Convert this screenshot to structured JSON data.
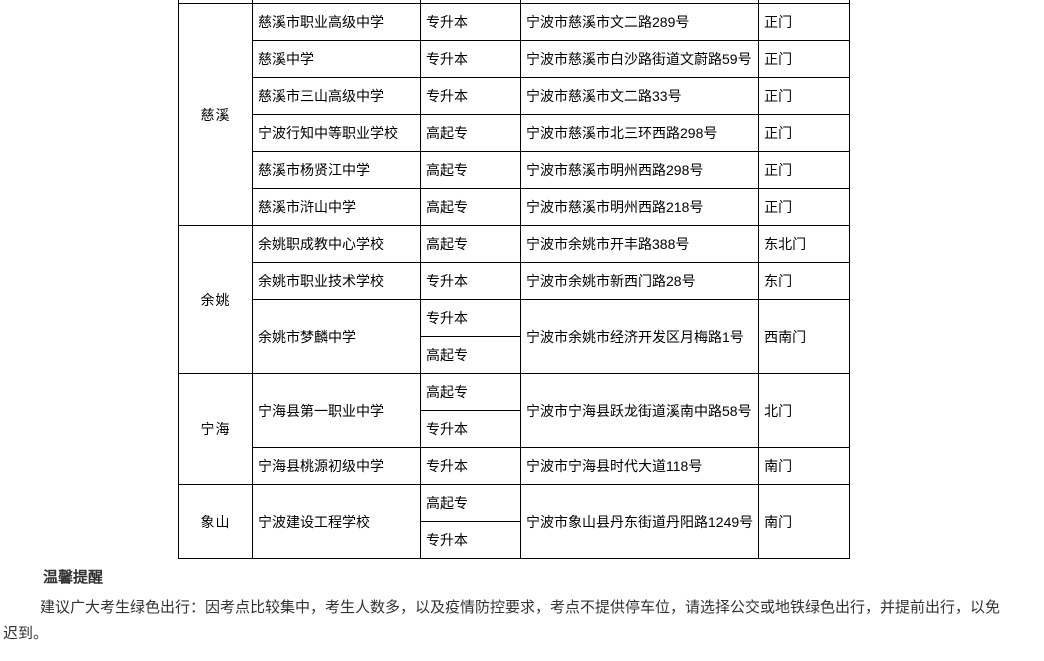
{
  "colors": {
    "background": "#ffffff",
    "table_border": "#000000",
    "table_text": "#000000",
    "notice_text": "#333333"
  },
  "table": {
    "groups": [
      {
        "district": "慈溪",
        "schools": [
          {
            "name": "慈溪市职业高级中学",
            "levels": [
              "专升本"
            ],
            "address": "宁波市慈溪市文二路289号",
            "gate": "正门"
          },
          {
            "name": "慈溪中学",
            "levels": [
              "专升本"
            ],
            "address": "宁波市慈溪市白沙路街道文蔚路59号",
            "gate": "正门"
          },
          {
            "name": "慈溪市三山高级中学",
            "levels": [
              "专升本"
            ],
            "address": "宁波市慈溪市文二路33号",
            "gate": "正门"
          },
          {
            "name": "宁波行知中等职业学校",
            "levels": [
              "高起专"
            ],
            "address": "宁波市慈溪市北三环西路298号",
            "gate": "正门"
          },
          {
            "name": "慈溪市杨贤江中学",
            "levels": [
              "高起专"
            ],
            "address": "宁波市慈溪市明州西路298号",
            "gate": "正门"
          },
          {
            "name": "慈溪市浒山中学",
            "levels": [
              "高起专"
            ],
            "address": "宁波市慈溪市明州西路218号",
            "gate": "正门"
          }
        ]
      },
      {
        "district": "余姚",
        "schools": [
          {
            "name": "余姚职成教中心学校",
            "levels": [
              "高起专"
            ],
            "address": "宁波市余姚市开丰路388号",
            "gate": "东北门"
          },
          {
            "name": "余姚市职业技术学校",
            "levels": [
              "专升本"
            ],
            "address": "宁波市余姚市新西门路28号",
            "gate": "东门"
          },
          {
            "name": "余姚市梦麟中学",
            "levels": [
              "专升本",
              "高起专"
            ],
            "address": "宁波市余姚市经济开发区月梅路1号",
            "gate": "西南门"
          }
        ]
      },
      {
        "district": "宁海",
        "schools": [
          {
            "name": "宁海县第一职业中学",
            "levels": [
              "高起专",
              "专升本"
            ],
            "address": "宁波市宁海县跃龙街道溪南中路58号",
            "gate": "北门"
          },
          {
            "name": "宁海县桃源初级中学",
            "levels": [
              "专升本"
            ],
            "address": "宁波市宁海县时代大道118号",
            "gate": "南门"
          }
        ]
      },
      {
        "district": "象山",
        "schools": [
          {
            "name": "宁波建设工程学校",
            "levels": [
              "高起专",
              "专升本"
            ],
            "address": "宁波市象山县丹东街道丹阳路1249号",
            "gate": "南门"
          }
        ]
      }
    ]
  },
  "notice": {
    "title": "温馨提醒",
    "body": "建议广大考生绿色出行：因考点比较集中，考生人数多，以及疫情防控要求，考点不提供停车位，请选择公交或地铁绿色出行，并提前出行，以免迟到。"
  }
}
